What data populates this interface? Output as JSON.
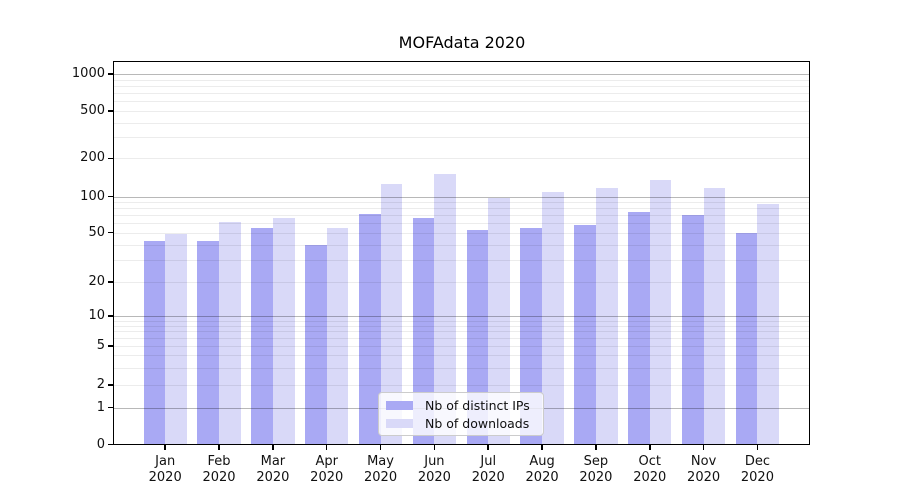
{
  "chart_data": {
    "type": "bar",
    "title": "MOFAdata 2020",
    "year": "2020",
    "categories": [
      "Jan",
      "Feb",
      "Mar",
      "Apr",
      "May",
      "Jun",
      "Jul",
      "Aug",
      "Sep",
      "Oct",
      "Nov",
      "Dec"
    ],
    "series": [
      {
        "name": "Nb of distinct IPs",
        "color": "#a9a9f4",
        "values": [
          43,
          43,
          55,
          40,
          72,
          66,
          52,
          55,
          58,
          74,
          70,
          50
        ]
      },
      {
        "name": "Nb of downloads",
        "color": "#d9d9f8",
        "values": [
          49,
          61,
          66,
          55,
          126,
          151,
          97,
          108,
          116,
          136,
          118,
          87
        ]
      }
    ],
    "xlabel": "",
    "ylabel": "",
    "yscale": "symlog",
    "y_ticks": [
      0,
      1,
      2,
      5,
      10,
      20,
      50,
      100,
      200,
      500,
      1000
    ],
    "ylim": [
      0,
      1100
    ],
    "grid": true,
    "legend_position": "lower center"
  },
  "legend": {
    "items": [
      "Nb of distinct IPs",
      "Nb of downloads"
    ]
  }
}
